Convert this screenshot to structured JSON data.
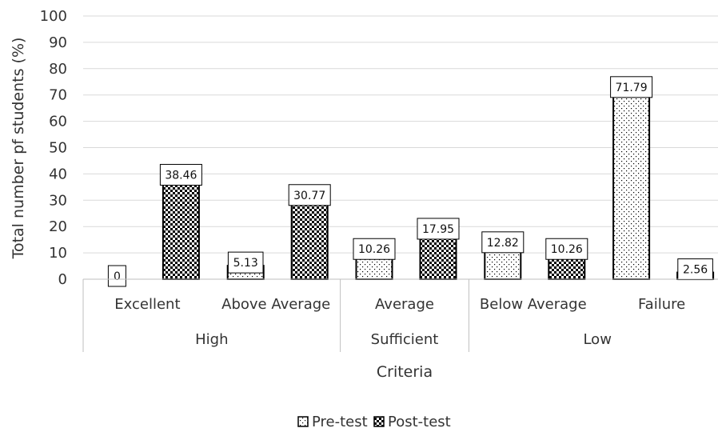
{
  "chart_data": {
    "type": "bar",
    "xlabel": "Criteria",
    "ylabel": "Total number pf students (%)",
    "ylim": [
      0,
      100
    ],
    "yticks": [
      "0",
      "10",
      "20",
      "30",
      "40",
      "50",
      "60",
      "70",
      "80",
      "90",
      "100"
    ],
    "grid": true,
    "legend_position": "bottom",
    "groups": [
      {
        "name": "High",
        "categories": [
          "Excellent",
          "Above Average"
        ]
      },
      {
        "name": "Sufficient",
        "categories": [
          "Average"
        ]
      },
      {
        "name": "Low",
        "categories": [
          "Below Average",
          "Failure"
        ]
      }
    ],
    "categories": [
      "Excellent",
      "Above Average",
      "Average",
      "Below Average",
      "Failure"
    ],
    "series": [
      {
        "name": "Pre-test",
        "pattern": "sparse-dots",
        "values": [
          0,
          5.13,
          10.26,
          12.82,
          71.79
        ],
        "labels": [
          "0",
          "5.13",
          "10.26",
          "12.82",
          "71.79"
        ]
      },
      {
        "name": "Post-test",
        "pattern": "dense-checker",
        "values": [
          38.46,
          30.77,
          17.95,
          10.26,
          2.56
        ],
        "labels": [
          "38.46",
          "30.77",
          "17.95",
          "10.26",
          "2.56"
        ]
      }
    ],
    "colors": {
      "bar_outline": "#000000",
      "grid": "#d9d9d9",
      "text": "#333333"
    }
  }
}
